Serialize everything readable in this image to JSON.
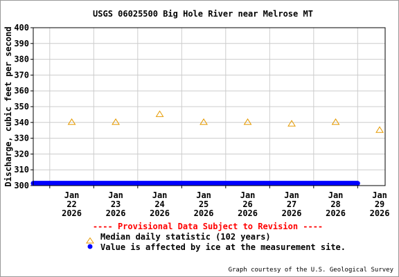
{
  "chart_data": {
    "type": "scatter",
    "title": "USGS 06025500 Big Hole River near Melrose MT",
    "ylabel": "Discharge, cubic feet per second",
    "xlabel": "",
    "ylim": [
      300,
      400
    ],
    "yticks": [
      300,
      310,
      320,
      330,
      340,
      350,
      360,
      370,
      380,
      390,
      400
    ],
    "xlim": [
      "2026-01-21T15:00",
      "2026-01-29T15:00"
    ],
    "xticks": [
      {
        "date": "2026-01-22",
        "month": "Jan",
        "day": "22",
        "year": "2026"
      },
      {
        "date": "2026-01-23",
        "month": "Jan",
        "day": "23",
        "year": "2026"
      },
      {
        "date": "2026-01-24",
        "month": "Jan",
        "day": "24",
        "year": "2026"
      },
      {
        "date": "2026-01-25",
        "month": "Jan",
        "day": "25",
        "year": "2026"
      },
      {
        "date": "2026-01-26",
        "month": "Jan",
        "day": "26",
        "year": "2026"
      },
      {
        "date": "2026-01-27",
        "month": "Jan",
        "day": "27",
        "year": "2026"
      },
      {
        "date": "2026-01-28",
        "month": "Jan",
        "day": "28",
        "year": "2026"
      },
      {
        "date": "2026-01-29",
        "month": "Jan",
        "day": "29",
        "year": "2026"
      }
    ],
    "grid": true,
    "series": [
      {
        "name": "Median daily statistic (102 years)",
        "marker": "triangle",
        "color": "#e69a00",
        "points": [
          {
            "x": "2026-01-22",
            "y": 340
          },
          {
            "x": "2026-01-23",
            "y": 340
          },
          {
            "x": "2026-01-24",
            "y": 345
          },
          {
            "x": "2026-01-25",
            "y": 340
          },
          {
            "x": "2026-01-26",
            "y": 340
          },
          {
            "x": "2026-01-27",
            "y": 339
          },
          {
            "x": "2026-01-28",
            "y": 340
          },
          {
            "x": "2026-01-29",
            "y": 335
          }
        ]
      },
      {
        "name": "Value is affected by ice at the measurement site.",
        "marker": "dot",
        "color": "#0000ff",
        "x_start": "2026-01-21T15:00",
        "x_end": "2026-01-29T00:00",
        "y": 301
      }
    ],
    "notice": "---- Provisional Data Subject to Revision ----",
    "notice_color": "#ff0000",
    "credit": "Graph courtesy of the U.S. Geological Survey"
  }
}
